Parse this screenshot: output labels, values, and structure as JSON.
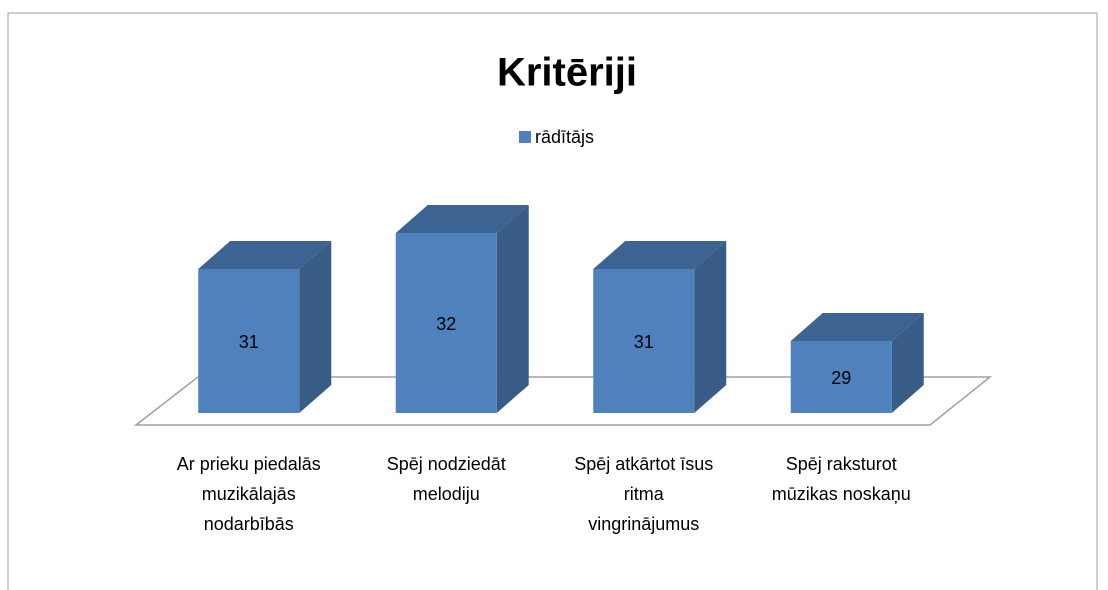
{
  "chart_data": {
    "type": "bar3d",
    "title": "Kritēriji",
    "categories": [
      "Ar prieku piedalās muzikālajās nodarbībās",
      "Spēj nodziedāt melodiju",
      "Spēj atkārtot īsus ritma vingrinājumus",
      "Spēj raksturot mūzikas noskaņu"
    ],
    "series": [
      {
        "name": "rādītājs",
        "color": "#4f81bd",
        "values": [
          31,
          32,
          31,
          29
        ]
      }
    ],
    "ylim": [
      27,
      33
    ],
    "legend": "top"
  }
}
